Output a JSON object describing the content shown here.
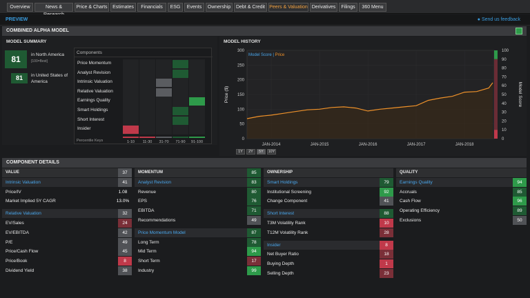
{
  "nav": {
    "tabs": [
      "Overview",
      "News & Research",
      "Price & Charts",
      "Estimates",
      "Financials",
      "ESG",
      "Events",
      "Ownership",
      "Debt & Credit",
      "Peers & Valuation",
      "Derivatives",
      "Filings",
      "360 Menu"
    ],
    "active": "Peers & Valuation"
  },
  "preview": {
    "label": "PREVIEW",
    "feedback": "Send us feedback"
  },
  "model": {
    "title": "COMBINED ALPHA MODEL"
  },
  "summary": {
    "title": "MODEL SUMMARY",
    "score1": "81",
    "region1": "in North America",
    "region1_note": "[100=Best]",
    "score2": "81",
    "region2": "in United States of America",
    "components_header": "Components",
    "components": [
      "Price Momentum",
      "Analyst Revision",
      "Intrinsic Valuation",
      "Relative Valuation",
      "Earnings Quality",
      "Smart Holdings",
      "Short Interest",
      "Insider"
    ],
    "percentile_label": "Percentile Keys",
    "percentile_keys": [
      "1-10",
      "11-30",
      "31-70",
      "71-90",
      "91-100"
    ],
    "bucket_index": [
      3,
      3,
      2,
      2,
      4,
      3,
      3,
      0
    ],
    "colors": {
      "high": "#1f5a33",
      "top": "#2e9a4a",
      "mid": "#5a5c60",
      "low": "#c0394a"
    }
  },
  "history": {
    "title": "MODEL HISTORY",
    "legend_score": "Model Score",
    "legend_price": "Price",
    "ylabel_left": "Price ($)",
    "ylabel_right": "Model Score",
    "yticks_left": [
      "300",
      "250",
      "200",
      "150",
      "100",
      "50",
      "0"
    ],
    "yticks_right": [
      "100",
      "90",
      "80",
      "70",
      "60",
      "50",
      "40",
      "30",
      "20",
      "10",
      "0"
    ],
    "xticks": [
      "JAN-2014",
      "JAN-2015",
      "JAN-2016",
      "JAN-2017",
      "JAN-2018"
    ],
    "ranges": [
      "1Y",
      "2Y",
      "5Y",
      "10Y"
    ],
    "active_range": "5Y"
  },
  "chart_data": {
    "type": "line",
    "x": [
      "2013-07",
      "2013-10",
      "2014-01",
      "2014-04",
      "2014-07",
      "2014-10",
      "2015-01",
      "2015-04",
      "2015-07",
      "2015-10",
      "2016-01",
      "2016-04",
      "2016-07",
      "2016-10",
      "2017-01",
      "2017-04",
      "2017-07",
      "2017-10",
      "2018-01",
      "2018-04",
      "2018-07",
      "2018-08"
    ],
    "series": [
      {
        "name": "Price",
        "values": [
          68,
          76,
          80,
          86,
          92,
          98,
          100,
          106,
          108,
          104,
          94,
          100,
          104,
          108,
          112,
          130,
          138,
          144,
          158,
          160,
          172,
          190
        ]
      }
    ],
    "ylim": [
      0,
      300
    ],
    "score_ylim": [
      0,
      100
    ],
    "score_bands": [
      {
        "value": 90,
        "color": "#2e9a4a"
      },
      {
        "value": 10,
        "color": "#c0394a"
      }
    ],
    "price_color": "#f0922a"
  },
  "details": {
    "title": "COMPONENT DETAILS",
    "value": {
      "header": "VALUE",
      "header_score": "37",
      "groups": [
        {
          "name": "Intrinsic Valuation",
          "score": "41",
          "rows": [
            {
              "label": "Price/IV",
              "value": "1.08"
            },
            {
              "label": "Market Implied 5Y CAGR",
              "value": "13.0%"
            }
          ]
        },
        {
          "name": "Relative Valuation",
          "score": "32",
          "rows": [
            {
              "label": "EV/Sales",
              "value": "24"
            },
            {
              "label": "EV/EBITDA",
              "value": "42"
            },
            {
              "label": "P/E",
              "value": "49"
            },
            {
              "label": "Price/Cash Flow",
              "value": "45"
            },
            {
              "label": "Price/Book",
              "value": "8"
            },
            {
              "label": "Dividend Yield",
              "value": "38"
            }
          ]
        }
      ]
    },
    "momentum": {
      "header": "MOMENTUM",
      "header_score": "85",
      "groups": [
        {
          "name": "Analyst Revision",
          "score": "83",
          "rows": [
            {
              "label": "Revenue",
              "value": "80"
            },
            {
              "label": "EPS",
              "value": "76"
            },
            {
              "label": "EBITDA",
              "value": "71"
            },
            {
              "label": "Recommendations",
              "value": "49"
            }
          ]
        },
        {
          "name": "Price Momentum Model",
          "score": "87",
          "rows": [
            {
              "label": "Long Term",
              "value": "78"
            },
            {
              "label": "Mid Term",
              "value": "94"
            },
            {
              "label": "Short Term",
              "value": "17"
            },
            {
              "label": "Industry",
              "value": "99"
            }
          ]
        }
      ]
    },
    "ownership": {
      "header": "OWNERSHIP",
      "groups": [
        {
          "name": "Smart Holdings",
          "score": "79",
          "rows": [
            {
              "label": "Institutional Screening",
              "value": "92"
            },
            {
              "label": "Change Component",
              "value": "41"
            }
          ]
        },
        {
          "name": "Short Interest",
          "score": "88",
          "rows": [
            {
              "label": "T3M Volatility Rank",
              "value": "10"
            },
            {
              "label": "T12M Volatility Rank",
              "value": "28"
            }
          ]
        },
        {
          "name": "Insider",
          "score": "8",
          "rows": [
            {
              "label": "Net Buyer Ratio",
              "value": "18"
            },
            {
              "label": "Buying Depth",
              "value": "1"
            },
            {
              "label": "Selling Depth",
              "value": "23"
            }
          ]
        }
      ]
    },
    "quality": {
      "header": "QUALITY",
      "groups": [
        {
          "name": "Earnings Quality",
          "score": "94",
          "rows": [
            {
              "label": "Accruals",
              "value": "85"
            },
            {
              "label": "Cash Flow",
              "value": "96"
            },
            {
              "label": "Operating Efficiency",
              "value": "89"
            },
            {
              "label": "Exclusions",
              "value": "50"
            }
          ]
        }
      ]
    }
  }
}
